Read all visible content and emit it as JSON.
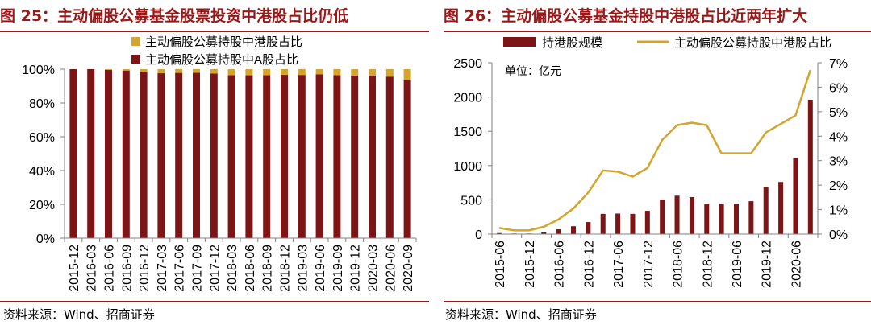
{
  "left_panel": {
    "figure_label": "图 25：",
    "title": "主动偏股公募基金股票投资中港股占比仍低",
    "source": "资料来源：Wind、招商证券"
  },
  "right_panel": {
    "figure_label": "图 26：",
    "title": "主动偏股公募基金持股中港股占比近两年扩大",
    "source": "资料来源：Wind、招商证券"
  },
  "colors": {
    "maroon": "#7d1416",
    "gold": "#d4a52a",
    "axis": "#808080",
    "title": "#9a1818"
  },
  "chart_data": [
    {
      "id": "fig25",
      "type": "bar",
      "stacked": true,
      "title": "主动偏股公募基金股票投资中港股占比仍低",
      "categories": [
        "2015-12",
        "2016-03",
        "2016-06",
        "2016-09",
        "2016-12",
        "2017-03",
        "2017-06",
        "2017-09",
        "2017-12",
        "2018-03",
        "2018-06",
        "2018-09",
        "2018-12",
        "2019-03",
        "2019-06",
        "2019-09",
        "2019-12",
        "2020-03",
        "2020-06",
        "2020-09"
      ],
      "series": [
        {
          "name": "主动偏股公募持股中A股占比",
          "color": "#7d1416",
          "values": [
            100,
            100,
            99.6,
            99.2,
            98.2,
            97.6,
            97.8,
            97.9,
            97.4,
            96.5,
            96.4,
            96.5,
            96.7,
            96.6,
            97.0,
            96.5,
            96.2,
            96.2,
            95.6,
            93.5
          ]
        },
        {
          "name": "主动偏股公募持股中港股占比",
          "color": "#d4a52a",
          "values": [
            0,
            0,
            0.4,
            0.8,
            1.8,
            2.4,
            2.2,
            2.1,
            2.6,
            3.5,
            3.6,
            3.5,
            3.3,
            3.4,
            3.0,
            3.5,
            3.8,
            3.8,
            4.4,
            6.5
          ]
        }
      ],
      "legend": [
        "主动偏股公募持股中港股占比",
        "主动偏股公募持股中A股占比"
      ],
      "y_ticks": [
        "0%",
        "20%",
        "40%",
        "60%",
        "80%",
        "100%"
      ],
      "ylim": [
        0,
        100
      ],
      "xlabel": "",
      "ylabel": ""
    },
    {
      "id": "fig26",
      "type": "bar+line",
      "title": "主动偏股公募基金持股中港股占比近两年扩大",
      "unit_label": "单位：亿元",
      "categories": [
        "2015-06",
        "2015-09",
        "2015-12",
        "2016-03",
        "2016-06",
        "2016-09",
        "2016-12",
        "2017-03",
        "2017-06",
        "2017-09",
        "2017-12",
        "2018-03",
        "2018-06",
        "2018-09",
        "2018-12",
        "2019-03",
        "2019-06",
        "2019-09",
        "2019-12",
        "2020-03",
        "2020-06",
        "2020-09"
      ],
      "x_tick_labels": [
        "2015-06",
        "",
        "2015-12",
        "",
        "2016-06",
        "",
        "2016-12",
        "",
        "2017-06",
        "",
        "2017-12",
        "",
        "2018-06",
        "",
        "2018-12",
        "",
        "2019-06",
        "",
        "2019-12",
        "",
        "2020-06",
        ""
      ],
      "bars": {
        "name": "持港股规模",
        "axis": "left",
        "color": "#7d1416",
        "values": [
          15,
          8,
          8,
          25,
          70,
          115,
          175,
          295,
          300,
          295,
          340,
          505,
          560,
          540,
          445,
          445,
          445,
          480,
          690,
          760,
          1110,
          1960
        ]
      },
      "line": {
        "name": "主动偏股公募持股中港股占比",
        "axis": "right",
        "color": "#d4a52a",
        "values": [
          0.25,
          0.15,
          0.15,
          0.3,
          0.6,
          1.05,
          1.7,
          2.6,
          2.55,
          2.35,
          2.7,
          3.85,
          4.45,
          4.55,
          4.45,
          3.3,
          3.3,
          3.3,
          4.15,
          4.5,
          4.85,
          6.7
        ]
      },
      "left_ylim": [
        0,
        2500
      ],
      "left_ticks": [
        "0",
        "500",
        "1000",
        "1500",
        "2000",
        "2500"
      ],
      "right_ylim": [
        0,
        7
      ],
      "right_ticks": [
        "0%",
        "1%",
        "2%",
        "3%",
        "4%",
        "5%",
        "6%",
        "7%"
      ],
      "legend": [
        "持港股规模",
        "主动偏股公募持股中港股占比"
      ]
    }
  ]
}
